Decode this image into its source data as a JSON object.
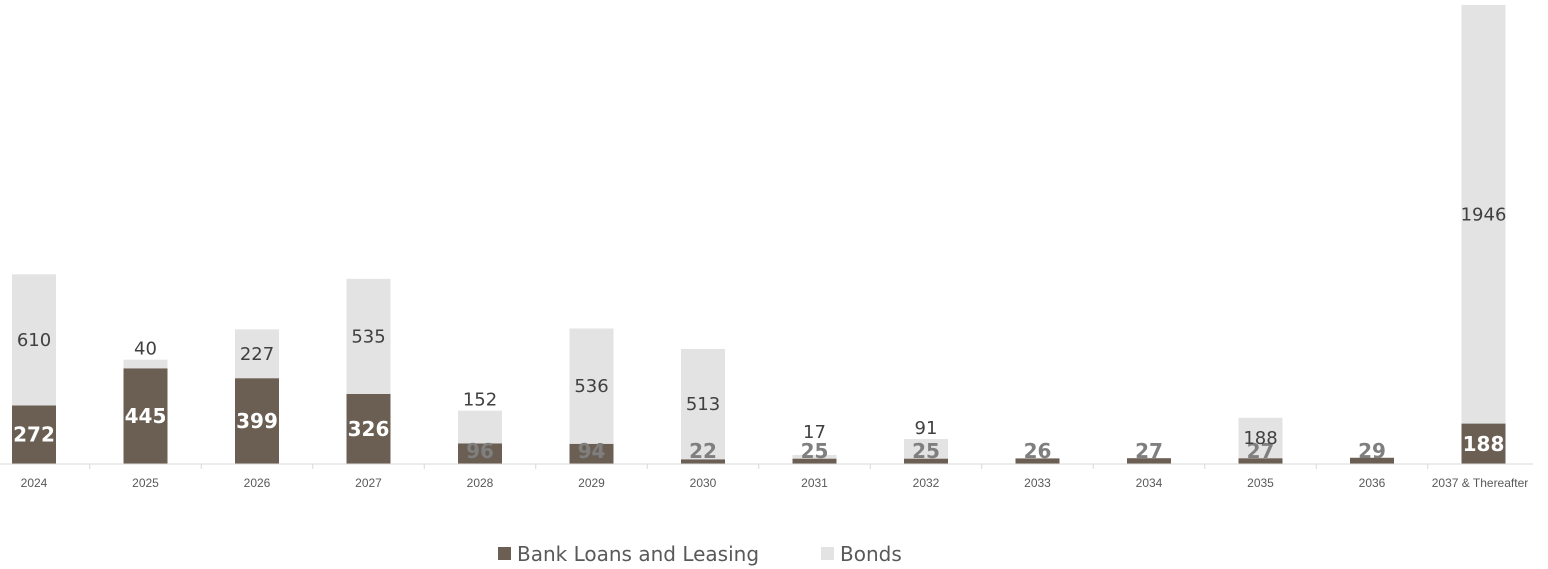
{
  "chart_data": {
    "type": "bar",
    "stacked": true,
    "categories": [
      "2024",
      "2025",
      "2026",
      "2027",
      "2028",
      "2029",
      "2030",
      "2031",
      "2032",
      "2033",
      "2034",
      "2035",
      "2036",
      "2037 & Thereafter"
    ],
    "series": [
      {
        "name": "Bank Loans and Leasing",
        "color": "#6b5f54",
        "values": [
          272,
          445,
          399,
          326,
          96,
          94,
          22,
          25,
          25,
          26,
          27,
          27,
          29,
          188
        ]
      },
      {
        "name": "Bonds",
        "color": "#e3e3e3",
        "values": [
          610,
          40,
          227,
          535,
          152,
          536,
          513,
          17,
          91,
          0,
          0,
          188,
          0,
          1946
        ]
      }
    ],
    "legend_position": "bottom",
    "grid": false
  }
}
